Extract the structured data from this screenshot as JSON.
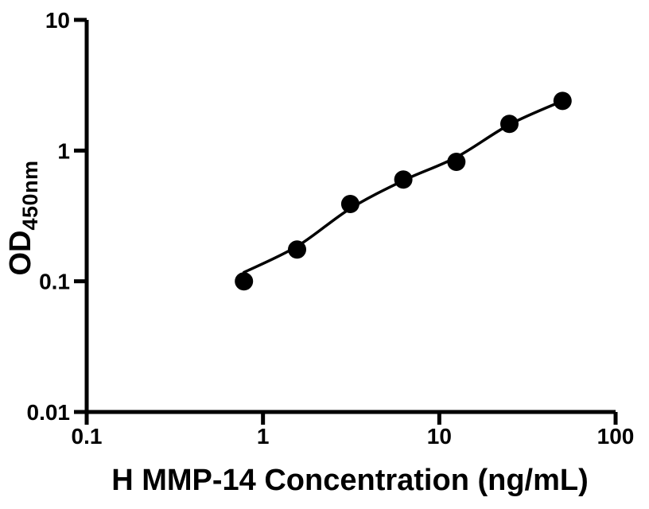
{
  "chart_data": {
    "type": "scatter",
    "title": "",
    "xlabel": "H MMP-14 Concentration (ng/mL)",
    "ylabel_main": "OD",
    "ylabel_sub": "450nm",
    "xscale": "log",
    "yscale": "log",
    "xlim": [
      0.1,
      100
    ],
    "ylim": [
      0.01,
      10
    ],
    "x_ticks": [
      0.1,
      1,
      10,
      100
    ],
    "x_tick_labels": [
      "0.1",
      "1",
      "10",
      "100"
    ],
    "y_ticks": [
      0.01,
      0.1,
      1,
      10
    ],
    "y_tick_labels": [
      "0.01",
      "0.1",
      "1",
      "10"
    ],
    "grid": false,
    "legend": "none",
    "axis_color": "#000000",
    "marker_color": "#000000",
    "line_color": "#000000",
    "series": [
      {
        "marker": "circle",
        "points": [
          {
            "x": 0.78,
            "y": 0.1
          },
          {
            "x": 1.56,
            "y": 0.175
          },
          {
            "x": 3.125,
            "y": 0.39
          },
          {
            "x": 6.25,
            "y": 0.6
          },
          {
            "x": 12.5,
            "y": 0.82
          },
          {
            "x": 25,
            "y": 1.6
          },
          {
            "x": 50,
            "y": 2.4
          }
        ]
      }
    ],
    "fit_curve": {
      "points": [
        {
          "x": 0.78,
          "y": 0.117
        },
        {
          "x": 1.56,
          "y": 0.185
        },
        {
          "x": 3.125,
          "y": 0.36
        },
        {
          "x": 6.25,
          "y": 0.59
        },
        {
          "x": 12.5,
          "y": 0.89
        },
        {
          "x": 25,
          "y": 1.58
        },
        {
          "x": 50,
          "y": 2.4
        }
      ]
    }
  }
}
